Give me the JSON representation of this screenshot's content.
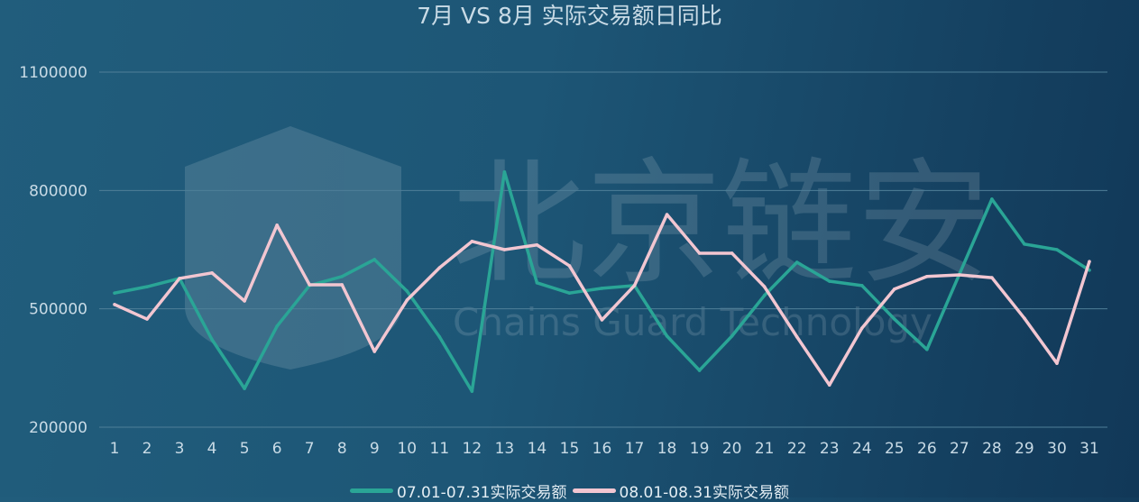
{
  "chart_data": {
    "type": "line",
    "title": "7月 VS 8月 实际交易额日同比",
    "xlabel": "",
    "ylabel": "",
    "x": [
      1,
      2,
      3,
      4,
      5,
      6,
      7,
      8,
      9,
      10,
      11,
      12,
      13,
      14,
      15,
      16,
      17,
      18,
      19,
      20,
      21,
      22,
      23,
      24,
      25,
      26,
      27,
      28,
      29,
      30,
      31
    ],
    "ylim": [
      200000,
      1100000
    ],
    "yticks": [
      200000,
      500000,
      800000,
      1100000
    ],
    "grid": true,
    "legend_position": "bottom",
    "series": [
      {
        "name": "07.01-07.31实际交易额",
        "color": "#2aa596",
        "values": [
          540000,
          556000,
          577000,
          422000,
          298000,
          456000,
          559000,
          582000,
          625000,
          545000,
          429000,
          291000,
          847000,
          566000,
          540000,
          552000,
          559000,
          431000,
          344000,
          431000,
          534000,
          618000,
          570000,
          559000,
          474000,
          397000,
          588000,
          778000,
          664000,
          650000,
          598000
        ]
      },
      {
        "name": "08.01-08.31实际交易额",
        "color": "#f2c6d1",
        "values": [
          511000,
          474000,
          577000,
          591000,
          520000,
          712000,
          561000,
          561000,
          392000,
          522000,
          604000,
          671000,
          650000,
          662000,
          609000,
          472000,
          559000,
          739000,
          641000,
          641000,
          556000,
          429000,
          307000,
          451000,
          550000,
          582000,
          586000,
          579000,
          476000,
          362000,
          620000
        ]
      }
    ]
  },
  "watermark": {
    "cn": "北京链安",
    "en": "Chains Guard Technology"
  },
  "colors": {
    "text": "#c9dbe6",
    "grid": "#4f7f98"
  }
}
